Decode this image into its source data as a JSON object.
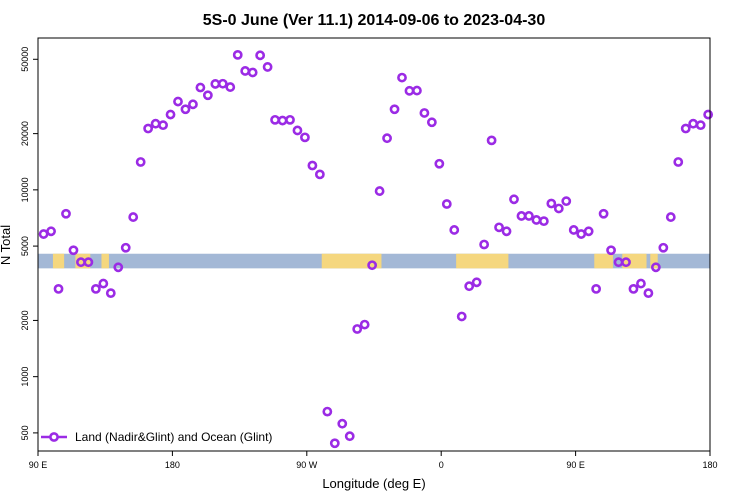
{
  "chart_data": {
    "type": "scatter",
    "title": "5S-0 June (Ver 11.1)   2014-09-06 to 2023-04-30",
    "xlabel": "Longitude (deg E)",
    "ylabel": "N Total",
    "xlim": [
      0,
      360
    ],
    "ylim_log": [
      400,
      65000
    ],
    "y_scale": "log",
    "grid": false,
    "legend_position": "bottom-left",
    "x_ticks": [
      {
        "value": 0,
        "label": "90 E"
      },
      {
        "value": 72,
        "label": "180"
      },
      {
        "value": 144,
        "label": "90 W"
      },
      {
        "value": 216,
        "label": "0"
      },
      {
        "value": 288,
        "label": "90 E"
      },
      {
        "value": 360,
        "label": "180"
      }
    ],
    "y_ticks": [
      {
        "value": 500,
        "label": "500"
      },
      {
        "value": 1000,
        "label": "1000"
      },
      {
        "value": 2000,
        "label": "2000"
      },
      {
        "value": 5000,
        "label": "5000"
      },
      {
        "value": 10000,
        "label": "10000"
      },
      {
        "value": 20000,
        "label": "20000"
      },
      {
        "value": 50000,
        "label": "50000"
      }
    ],
    "band": {
      "y_low": 3800,
      "y_high": 4550,
      "ocean_color": "#a3b8d6",
      "land_color": "#f5d77f"
    },
    "land_segments": [
      [
        8,
        14
      ],
      [
        20,
        28
      ],
      [
        34,
        38
      ],
      [
        152,
        184
      ],
      [
        224,
        252
      ],
      [
        298,
        308
      ],
      [
        313,
        326
      ],
      [
        328,
        332
      ]
    ],
    "series": [
      {
        "name": "Land (Nadir&Glint) and Ocean (Glint)",
        "color": "#9b2be5",
        "x": [
          3,
          7,
          11,
          15,
          19,
          23,
          27,
          31,
          35,
          39,
          43,
          47,
          51,
          55,
          59,
          63,
          67,
          71,
          75,
          79,
          83,
          87,
          91,
          95,
          99,
          103,
          107,
          111,
          115,
          119,
          123,
          127,
          131,
          135,
          139,
          143,
          147,
          151,
          155,
          159,
          163,
          167,
          171,
          175,
          179,
          183,
          187,
          191,
          195,
          199,
          203,
          207,
          211,
          215,
          219,
          223,
          227,
          231,
          235,
          239,
          243,
          247,
          251,
          255,
          259,
          263,
          267,
          271,
          275,
          279,
          283,
          287,
          291,
          295,
          299,
          303,
          307,
          311,
          315,
          319,
          323,
          327,
          331,
          335,
          339,
          343,
          347,
          351,
          355,
          359
        ],
        "y": [
          5800,
          6000,
          2950,
          7450,
          4750,
          4100,
          4100,
          2950,
          3150,
          2800,
          3850,
          4900,
          7150,
          14100,
          21300,
          22600,
          22200,
          25300,
          29700,
          27000,
          28700,
          35300,
          32100,
          36900,
          37000,
          35500,
          52800,
          43300,
          42500,
          52500,
          45500,
          23700,
          23500,
          23700,
          20800,
          19100,
          13500,
          12100,
          650,
          440,
          560,
          480,
          1800,
          1900,
          3950,
          9850,
          18900,
          27000,
          39900,
          33900,
          34000,
          25800,
          23000,
          13800,
          8400,
          6100,
          2100,
          3050,
          3200,
          5100,
          18400,
          6300,
          6000,
          8900,
          7250,
          7250,
          6900,
          6800,
          8450,
          7950,
          8700,
          6100,
          5800,
          6000,
          2950,
          7450,
          4750,
          4100,
          4100,
          2950,
          3150,
          2800,
          3850,
          4900,
          7150,
          14100,
          21300,
          22600,
          22200,
          25300
        ]
      }
    ],
    "legend": [
      {
        "label": "Land (Nadir&Glint) and Ocean (Glint)",
        "color": "#9b2be5"
      }
    ]
  }
}
